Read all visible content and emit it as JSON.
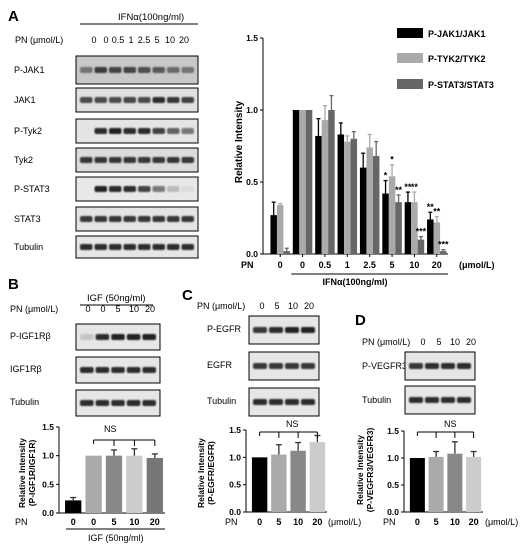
{
  "panels": {
    "A": {
      "letter": "A",
      "treatment": "IFNα(100ng/ml)",
      "pn_label": "PN (μmol/L)",
      "doses": [
        "0",
        "0",
        "0.5",
        "1",
        "2.5",
        "5",
        "10",
        "20"
      ],
      "blots": [
        "P-JAK1",
        "JAK1",
        "P-Tyk2",
        "Tyk2",
        "P-STAT3",
        "STAT3",
        "Tubulin"
      ],
      "legend": [
        "P-JAK1/JAK1",
        "P-TYK2/TYK2",
        "P-STAT3/STAT3"
      ]
    },
    "B": {
      "letter": "B",
      "treatment": "IGF (50ng/ml)",
      "pn_label": "PN (μmol/L)",
      "doses": [
        "0",
        "0",
        "5",
        "10",
        "20"
      ],
      "blots": [
        "P-IGF1Rβ",
        "IGF1Rβ",
        "Tubulin"
      ],
      "ylabel": "Relative Intensity (P-IGF1R/IGF1R)",
      "ns": "NS",
      "x_prefix": "PN",
      "x_treatment": "IGF (50ng/ml)"
    },
    "C": {
      "letter": "C",
      "pn_label": "PN (μmol/L)",
      "doses": [
        "0",
        "5",
        "10",
        "20"
      ],
      "blots": [
        "P-EGFR",
        "EGFR",
        "Tubulin"
      ],
      "ylabel": "Relative Intensity (P-EGFR/EGFR)",
      "ns": "NS",
      "x_prefix": "PN",
      "unit": "(μmol/L)"
    },
    "D": {
      "letter": "D",
      "pn_label": "PN (μmol/L)",
      "doses": [
        "0",
        "5",
        "10",
        "20"
      ],
      "blots": [
        "P-VEGFR3",
        "Tubulin"
      ],
      "ylabel": "Relative Intensity (P-VEGFR3/VEGFR3)",
      "ns": "NS",
      "x_prefix": "PN",
      "unit": "(μmol/L)"
    }
  },
  "chart_data": [
    {
      "id": "A",
      "type": "bar",
      "categories": [
        "0",
        "0",
        "0.5",
        "1",
        "2.5",
        "5",
        "10",
        "20"
      ],
      "x_prefix": "PN",
      "x_unit": "(μmol/L)",
      "x_group_label": "IFNα(100ng/ml)",
      "ylabel": "Relative Intensity",
      "ylim": [
        0,
        1.5
      ],
      "yticks": [
        "0.0",
        "0.5",
        "1.0",
        "1.5"
      ],
      "series": [
        {
          "name": "P-JAK1/JAK1",
          "color": "#000000",
          "values": [
            0.27,
            1.0,
            0.82,
            0.83,
            0.6,
            0.42,
            0.36,
            0.24
          ]
        },
        {
          "name": "P-TYK2/TYK2",
          "color": "#aaaaaa",
          "values": [
            0.34,
            1.0,
            0.93,
            0.78,
            0.74,
            0.54,
            0.36,
            0.22
          ]
        },
        {
          "name": "P-STAT3/STAT3",
          "color": "#666666",
          "values": [
            0.02,
            1.0,
            1.0,
            0.8,
            0.68,
            0.36,
            0.1,
            0.02
          ]
        }
      ],
      "errors": [
        [
          0.09,
          0.0,
          0.12,
          0.08,
          0.1,
          0.09,
          0.07,
          0.05
        ],
        [
          0.01,
          0.0,
          0.1,
          0.04,
          0.09,
          0.08,
          0.07,
          0.04
        ],
        [
          0.02,
          0.0,
          0.1,
          0.05,
          0.1,
          0.05,
          0.02,
          0.01
        ]
      ],
      "significance": [
        [
          "",
          "",
          "",
          "",
          "",
          "*",
          "**",
          "**"
        ],
        [
          "",
          "",
          "",
          "",
          "",
          "*",
          "**",
          "**"
        ],
        [
          "",
          "",
          "",
          "",
          "",
          "**",
          "***",
          "***"
        ]
      ]
    },
    {
      "id": "B",
      "type": "bar",
      "categories": [
        "0",
        "0",
        "5",
        "10",
        "20"
      ],
      "colors": [
        "#000000",
        "#aaaaaa",
        "#888888",
        "#cccccc",
        "#777777"
      ],
      "values": [
        0.22,
        1.0,
        1.0,
        1.0,
        0.96
      ],
      "errors": [
        0.05,
        0.0,
        0.1,
        0.12,
        0.07
      ],
      "ylabel": "Relative Intensity (P-IGF1R/IGF1R)",
      "ylim": [
        0,
        1.5
      ],
      "yticks": [
        "0.0",
        "0.5",
        "1.0",
        "1.5"
      ]
    },
    {
      "id": "C",
      "type": "bar",
      "categories": [
        "0",
        "5",
        "10",
        "20"
      ],
      "colors": [
        "#000000",
        "#aaaaaa",
        "#888888",
        "#cccccc"
      ],
      "values": [
        1.0,
        1.05,
        1.12,
        1.28
      ],
      "errors": [
        0.0,
        0.18,
        0.15,
        0.12
      ],
      "ylabel": "Relative Intensity (P-EGFR/EGFR)",
      "ylim": [
        0,
        1.5
      ],
      "yticks": [
        "0.0",
        "0.5",
        "1.0",
        "1.5"
      ]
    },
    {
      "id": "D",
      "type": "bar",
      "categories": [
        "0",
        "5",
        "10",
        "20"
      ],
      "colors": [
        "#000000",
        "#aaaaaa",
        "#888888",
        "#cccccc"
      ],
      "values": [
        1.0,
        1.02,
        1.08,
        1.02
      ],
      "errors": [
        0.0,
        0.1,
        0.22,
        0.1
      ],
      "ylabel": "Relative Intensity (P-VEGFR3/VEGFR3)",
      "ylim": [
        0,
        1.5
      ],
      "yticks": [
        "0.0",
        "0.5",
        "1.0",
        "1.5"
      ]
    }
  ]
}
